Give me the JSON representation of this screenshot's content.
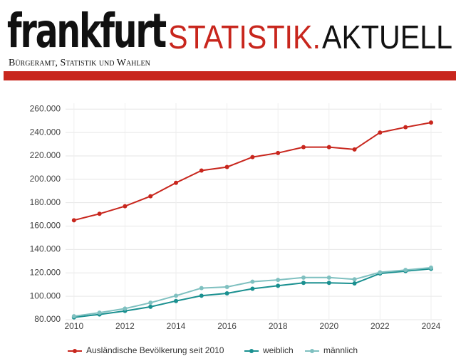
{
  "header": {
    "logo": "frankfurt",
    "title_red": "STATISTIK.",
    "title_black": "AKTUELL",
    "subtitle": "Bürgeramt, Statistik und Wahlen"
  },
  "chart_data": {
    "type": "line",
    "x": [
      2010,
      2011,
      2012,
      2013,
      2014,
      2015,
      2016,
      2017,
      2018,
      2019,
      2020,
      2021,
      2022,
      2023,
      2024
    ],
    "series": [
      {
        "name": "Ausländische Bevölkerung seit 2010",
        "color": "#c8261d",
        "values": [
          165000,
          170500,
          177000,
          185500,
          197000,
          207500,
          210500,
          219000,
          222500,
          227500,
          227500,
          225500,
          240000,
          244500,
          248500
        ]
      },
      {
        "name": "weiblich",
        "color": "#1a9090",
        "values": [
          82000,
          84500,
          87500,
          91000,
          96000,
          100500,
          102500,
          106500,
          109000,
          111500,
          111500,
          111000,
          119500,
          121500,
          123500
        ]
      },
      {
        "name": "männlich",
        "color": "#7fc0c0",
        "values": [
          83000,
          86000,
          89500,
          94500,
          100500,
          107000,
          108000,
          112500,
          114000,
          116000,
          116000,
          114500,
          120500,
          122500,
          124500
        ]
      }
    ],
    "xlim": [
      2009.67,
      2024.42
    ],
    "xticks": [
      2010,
      2012,
      2014,
      2016,
      2018,
      2020,
      2022,
      2024
    ],
    "ylim": [
      80000,
      265000
    ],
    "yticks": [
      {
        "value": 80000,
        "label": "80.000"
      },
      {
        "value": 100000,
        "label": "100.000"
      },
      {
        "value": 120000,
        "label": "120.000"
      },
      {
        "value": 140000,
        "label": "140.000"
      },
      {
        "value": 160000,
        "label": "160.000"
      },
      {
        "value": 180000,
        "label": "180.000"
      },
      {
        "value": 200000,
        "label": "200.000"
      },
      {
        "value": 220000,
        "label": "220.000"
      },
      {
        "value": 240000,
        "label": "240.000"
      },
      {
        "value": 260000,
        "label": "260.000"
      }
    ],
    "grid": true,
    "legend": "bottom"
  }
}
